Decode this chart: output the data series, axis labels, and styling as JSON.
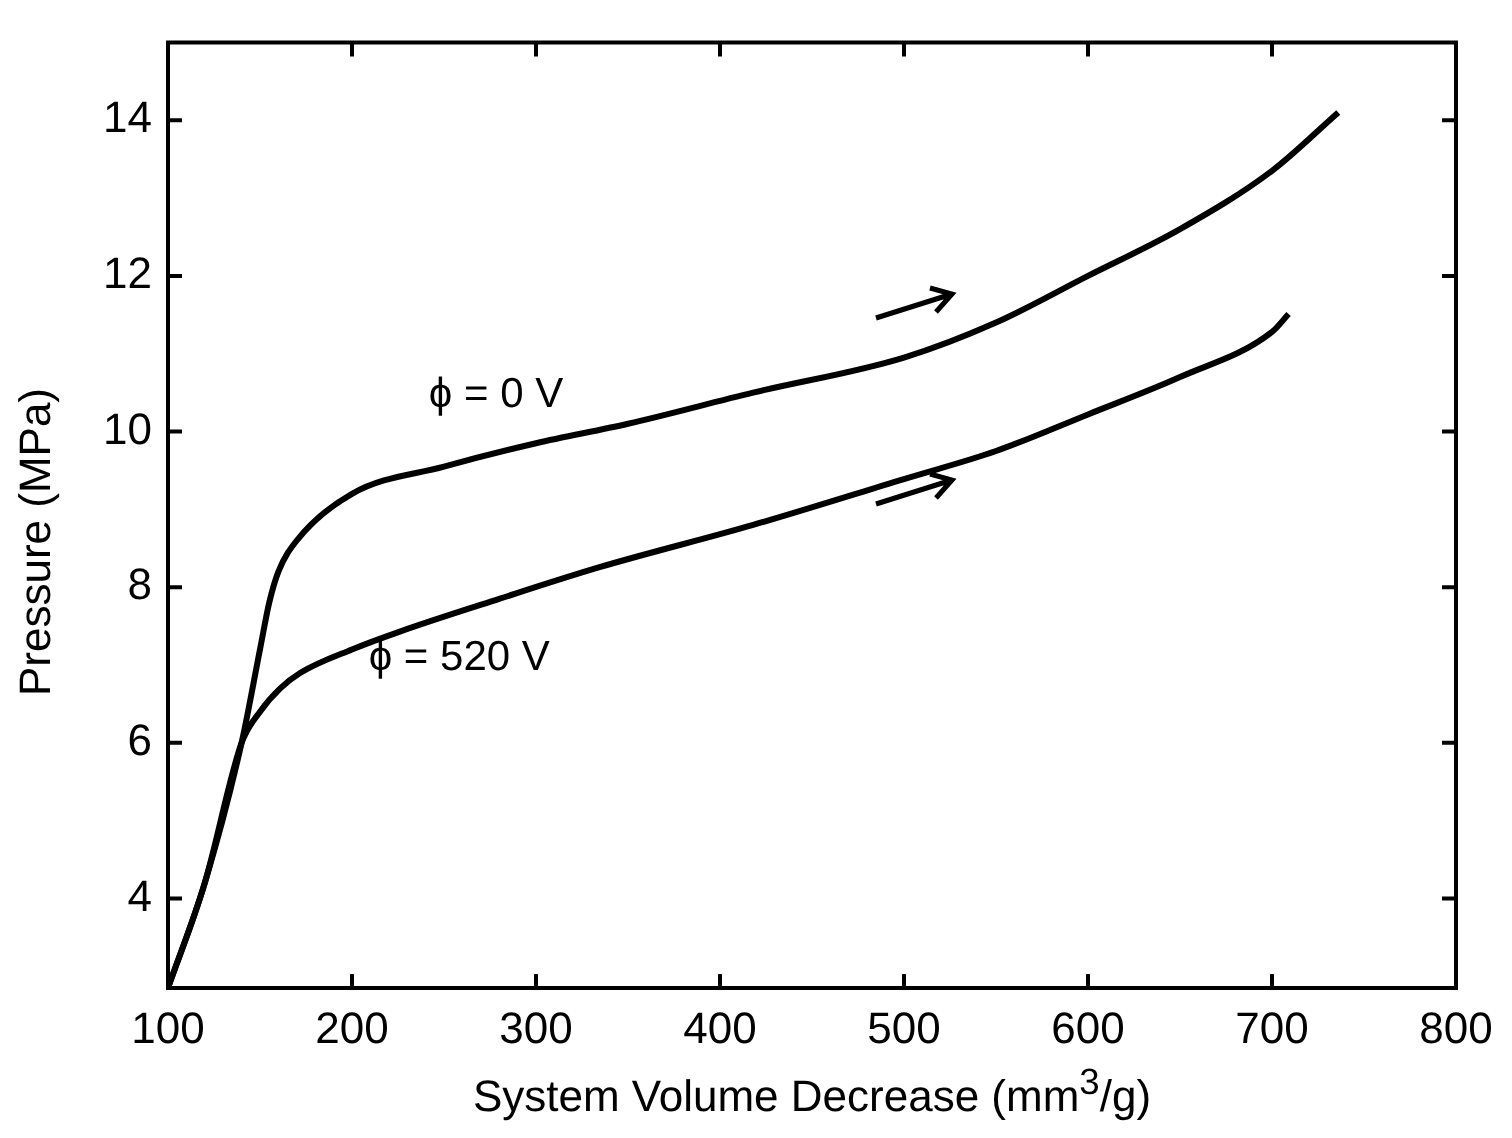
{
  "chart_data": {
    "type": "line",
    "xlabel": "System Volume Decrease (mm$^{3}$/g)",
    "ylabel": "Pressure (MPa)",
    "xlim": [
      100,
      800
    ],
    "xticks": [
      100,
      200,
      300,
      400,
      500,
      600,
      700,
      800
    ],
    "ylim": [
      2.85,
      15
    ],
    "yticks": [
      4,
      6,
      8,
      10,
      12,
      14
    ],
    "grid": false,
    "legend": false,
    "marker": "none",
    "line_style": "solid",
    "series": [
      {
        "name": "ϕ = 0 V",
        "color": "#000000",
        "x": [
          100,
          120,
          140,
          150,
          155,
          160,
          170,
          200,
          250,
          300,
          350,
          418,
          500,
          550,
          600,
          650,
          700,
          736
        ],
        "values": [
          2.85,
          4.2,
          6.0,
          7.2,
          7.8,
          8.2,
          8.6,
          9.2,
          9.55,
          9.85,
          10.1,
          10.5,
          10.95,
          11.4,
          12.0,
          12.6,
          13.35,
          14.1
        ]
      },
      {
        "name": "ϕ = 520 V",
        "color": "#000000",
        "x": [
          100,
          120,
          140,
          150,
          161,
          172,
          200,
          226,
          280,
          335,
          418,
          500,
          550,
          600,
          650,
          700,
          709
        ],
        "values": [
          2.85,
          4.2,
          6.0,
          6.4,
          6.7,
          6.9,
          7.2,
          7.43,
          7.85,
          8.26,
          8.8,
          9.39,
          9.75,
          10.22,
          10.7,
          11.28,
          11.51
        ]
      }
    ]
  }
}
